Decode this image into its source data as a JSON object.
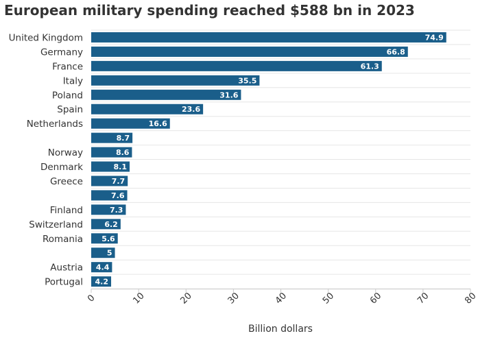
{
  "chart_data": {
    "type": "bar",
    "orientation": "horizontal",
    "title": "European military spending reached $588 bn in 2023",
    "xlabel": "Billion dollars",
    "ylabel": "",
    "xlim": [
      0,
      80
    ],
    "ticks": [
      0,
      10,
      20,
      30,
      40,
      50,
      60,
      70,
      80
    ],
    "grid": true,
    "bar_color": "#1a5e8a",
    "categories": [
      "United Kingdom",
      "Germany",
      "France",
      "Italy",
      "Poland",
      "Spain",
      "Netherlands",
      "",
      "Norway",
      "Denmark",
      "Greece",
      "",
      "Finland",
      "Switzerland",
      "Romania",
      "",
      "Austria",
      "Portugal"
    ],
    "values": [
      74.9,
      66.8,
      61.3,
      35.5,
      31.6,
      23.6,
      16.6,
      8.7,
      8.6,
      8.1,
      7.7,
      7.6,
      7.3,
      6.2,
      5.6,
      5,
      4.4,
      4.2
    ]
  }
}
